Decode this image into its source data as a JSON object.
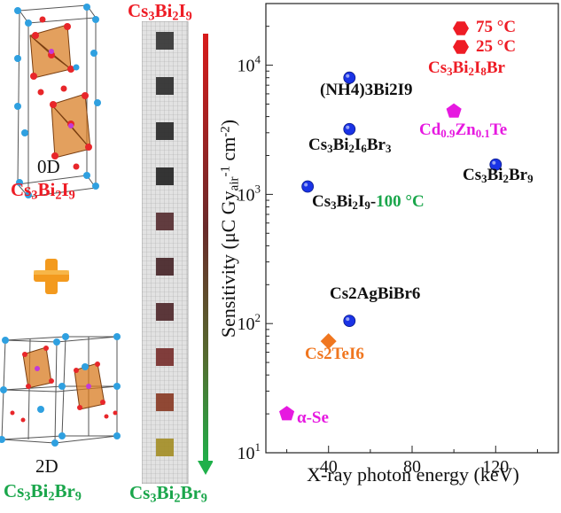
{
  "left_panel": {
    "label_0d": "0D",
    "formula_0d": [
      "Cs",
      "3",
      "Bi",
      "2",
      "I",
      "9"
    ],
    "label_2d": "2D",
    "formula_2d": [
      "Cs",
      "3",
      "Bi",
      "2",
      "Br",
      "9"
    ]
  },
  "strip": {
    "top_formula": [
      "Cs",
      "3",
      "Bi",
      "2",
      "I",
      "9"
    ],
    "bottom_formula": [
      "Cs",
      "3",
      "Bi",
      "2",
      "Br",
      "9"
    ],
    "sample_colors": [
      "#3a3a3a",
      "#333333",
      "#2e2e2e",
      "#2a2a2a",
      "#5a3336",
      "#4b2a2d",
      "#532d30",
      "#7a3431",
      "#8b3f2a",
      "#a5902c"
    ]
  },
  "chart_data": {
    "type": "scatter",
    "xlabel": "X-ray photon energy (keV)",
    "ylabel_parts": [
      "Sensitivity (μC Gy",
      "air",
      "-1",
      " cm",
      "-2",
      ")"
    ],
    "xlim": [
      10,
      150
    ],
    "ylim": [
      10,
      30000
    ],
    "yscale": "log",
    "x_ticks": [
      40,
      80,
      120
    ],
    "y_ticks": [
      {
        "value": 10,
        "mant": "10",
        "exp": "1"
      },
      {
        "value": 100,
        "mant": "10",
        "exp": "2"
      },
      {
        "value": 1000,
        "mant": "10",
        "exp": "3"
      },
      {
        "value": 10000,
        "mant": "10",
        "exp": "4"
      }
    ],
    "colors": {
      "blue": "#1a33e6",
      "magenta": "#e619e0",
      "orange": "#f0761f",
      "red": "#ee1c25"
    },
    "points": [
      {
        "id": "nh4",
        "x": 50,
        "y": 8000,
        "marker": "circle",
        "color": "#1a33e6",
        "label": "(NH4)3Bi2I9",
        "label_color": "#111111"
      },
      {
        "id": "cs3bi2i6br3",
        "x": 50,
        "y": 3200,
        "marker": "circle",
        "color": "#1a33e6",
        "label": "Cs3Bi2I6Br3",
        "label_color": "#111111"
      },
      {
        "id": "cs3bi2i9",
        "x": 30,
        "y": 1150,
        "marker": "circle",
        "color": "#1a33e6",
        "label": "Cs3Bi2I9-",
        "label_color": "#111111",
        "label_suffix": "100 °C",
        "label_suffix_color": "#1aa64b"
      },
      {
        "id": "cs3bi2br9",
        "x": 120,
        "y": 1700,
        "marker": "circle",
        "color": "#1a33e6",
        "label": "Cs3Bi2Br9",
        "label_color": "#111111"
      },
      {
        "id": "cs2agbibr6",
        "x": 50,
        "y": 105,
        "marker": "circle",
        "color": "#1a33e6",
        "label": "Cs2AgBiBr6",
        "label_color": "#111111"
      },
      {
        "id": "cs2tei6",
        "x": 40,
        "y": 73,
        "marker": "diamond",
        "color": "#f0761f",
        "label": "Cs2TeI6",
        "label_color": "#f0761f"
      },
      {
        "id": "czt",
        "x": 100,
        "y": 4400,
        "marker": "pentagon",
        "color": "#e619e0",
        "label": "Cd0.9Zn0.1Te",
        "label_color": "#e619e0"
      },
      {
        "id": "ase",
        "x": 20,
        "y": 20,
        "marker": "pentagon",
        "color": "#e619e0",
        "label": "α-Se",
        "label_color": "#e619e0"
      }
    ],
    "legend": {
      "placement": "top-right",
      "entries": [
        {
          "label": "75 °C",
          "color": "#ee1c25",
          "marker": "hexagon"
        },
        {
          "label": "25 °C",
          "color": "#ee1c25",
          "marker": "hexagon"
        }
      ],
      "title": "Cs3Bi2I8Br"
    }
  }
}
